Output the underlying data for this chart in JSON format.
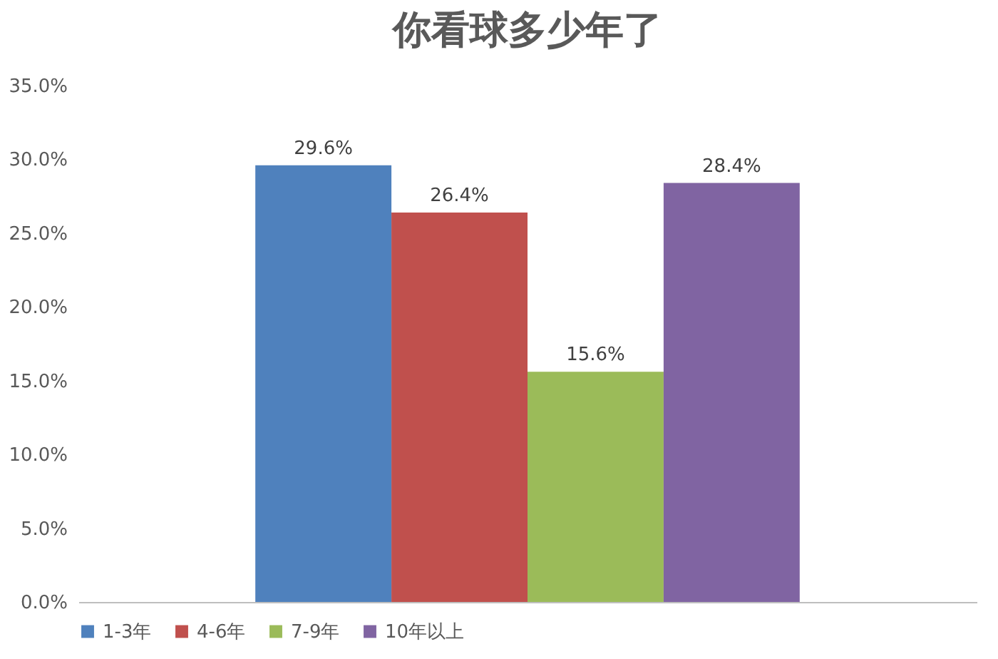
{
  "chart_data": {
    "type": "bar",
    "title": "你看球多少年了",
    "categories": [
      null
    ],
    "series": [
      {
        "name": "1-3年",
        "color": "#4f81bd",
        "values": [
          29.6
        ],
        "value_labels": [
          "29.6%"
        ]
      },
      {
        "name": "4-6年",
        "color": "#c0504d",
        "values": [
          26.4
        ],
        "value_labels": [
          "26.4%"
        ]
      },
      {
        "name": "7-9年",
        "color": "#9bbb59",
        "values": [
          15.6
        ],
        "value_labels": [
          "15.6%"
        ]
      },
      {
        "name": "10年以上",
        "color": "#8064a2",
        "values": [
          28.4
        ],
        "value_labels": [
          "28.4%"
        ]
      }
    ],
    "ylim": [
      0,
      35
    ],
    "yticks": [
      {
        "value": 0,
        "label": "0.0%"
      },
      {
        "value": 5,
        "label": "5.0%"
      },
      {
        "value": 10,
        "label": "10.0%"
      },
      {
        "value": 15,
        "label": "15.0%"
      },
      {
        "value": 20,
        "label": "20.0%"
      },
      {
        "value": 25,
        "label": "25.0%"
      },
      {
        "value": 30,
        "label": "30.0%"
      },
      {
        "value": 35,
        "label": "35.0%"
      }
    ],
    "tick_labels": "y",
    "grid": false,
    "legend": "bottom"
  }
}
